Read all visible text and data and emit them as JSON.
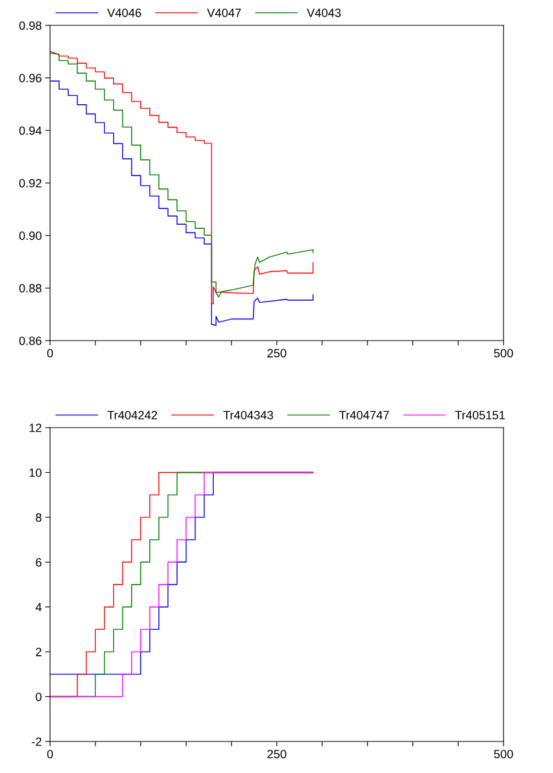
{
  "chart_data": [
    {
      "type": "line",
      "legend": "top left",
      "grid": false,
      "xlim": [
        0,
        500
      ],
      "ylim": [
        0.86,
        0.98
      ],
      "xticks": [
        0,
        {
          "value": 50,
          "label": null
        },
        {
          "value": 100,
          "label": null
        },
        {
          "value": 150,
          "label": null
        },
        {
          "value": 200,
          "label": null
        },
        250,
        {
          "value": 300,
          "label": null
        },
        {
          "value": 350,
          "label": null
        },
        {
          "value": 400,
          "label": null
        },
        {
          "value": 450,
          "label": null
        },
        500
      ],
      "yticks": [
        0.86,
        0.88,
        {
          "value": 0.9,
          "label": "0.90"
        },
        0.92,
        0.94,
        0.96,
        0.98
      ],
      "series": [
        {
          "name": "V4046",
          "color": "#0000ff",
          "x": [
            0,
            10,
            10,
            20,
            20,
            30,
            30,
            40,
            40,
            50,
            50,
            60,
            60,
            70,
            70,
            80,
            80,
            90,
            90,
            100,
            100,
            110,
            110,
            120,
            120,
            130,
            130,
            140,
            140,
            150,
            150,
            160,
            160,
            170,
            170,
            178,
            178,
            183,
            183,
            186,
            200,
            224,
            225,
            229,
            231,
            261,
            262,
            290,
            290
          ],
          "values": [
            0.9588,
            0.9588,
            0.9557,
            0.9557,
            0.9533,
            0.9533,
            0.9498,
            0.9498,
            0.9463,
            0.9463,
            0.943,
            0.943,
            0.939,
            0.939,
            0.935,
            0.935,
            0.9292,
            0.9292,
            0.9228,
            0.9228,
            0.919,
            0.919,
            0.915,
            0.915,
            0.9103,
            0.9103,
            0.9074,
            0.9074,
            0.9043,
            0.9043,
            0.9011,
            0.9011,
            0.8991,
            0.8991,
            0.8968,
            0.8968,
            0.8662,
            0.8658,
            0.8692,
            0.867,
            0.8682,
            0.8682,
            0.8749,
            0.8762,
            0.8745,
            0.8757,
            0.8754,
            0.8754,
            0.8775
          ]
        },
        {
          "name": "V4047",
          "color": "#ff0000",
          "x": [
            0,
            10,
            10,
            20,
            20,
            30,
            30,
            40,
            40,
            50,
            50,
            60,
            60,
            70,
            70,
            80,
            80,
            90,
            90,
            100,
            100,
            110,
            110,
            120,
            120,
            130,
            130,
            140,
            140,
            150,
            150,
            160,
            160,
            170,
            170,
            178,
            178,
            180,
            180,
            183,
            186,
            200,
            224,
            225,
            229,
            231,
            242,
            261,
            262,
            290,
            290
          ],
          "values": [
            0.9701,
            0.9688,
            0.9683,
            0.9683,
            0.9675,
            0.9675,
            0.9656,
            0.9656,
            0.9638,
            0.9638,
            0.9623,
            0.9623,
            0.9599,
            0.9599,
            0.9577,
            0.9577,
            0.9544,
            0.9544,
            0.951,
            0.951,
            0.9484,
            0.9484,
            0.9457,
            0.9457,
            0.9431,
            0.9431,
            0.9412,
            0.9412,
            0.9392,
            0.9392,
            0.9375,
            0.9375,
            0.9362,
            0.9362,
            0.9351,
            0.9351,
            0.874,
            0.874,
            0.8805,
            0.8783,
            0.8785,
            0.8782,
            0.8779,
            0.8866,
            0.8881,
            0.8853,
            0.8862,
            0.8866,
            0.8857,
            0.8857,
            0.8897
          ]
        },
        {
          "name": "V4043",
          "color": "#008000",
          "x": [
            0,
            10,
            10,
            20,
            20,
            30,
            30,
            40,
            40,
            50,
            50,
            60,
            60,
            70,
            70,
            80,
            80,
            90,
            90,
            100,
            100,
            110,
            110,
            120,
            120,
            130,
            130,
            140,
            140,
            150,
            150,
            160,
            160,
            170,
            170,
            178,
            178,
            183,
            183,
            186,
            189,
            202,
            224,
            226,
            229,
            231,
            242,
            261,
            262,
            290,
            290
          ],
          "values": [
            0.9694,
            0.969,
            0.9666,
            0.9666,
            0.9653,
            0.9653,
            0.9618,
            0.9618,
            0.9588,
            0.9588,
            0.9557,
            0.9557,
            0.9516,
            0.9516,
            0.9477,
            0.9477,
            0.9413,
            0.9413,
            0.9344,
            0.9344,
            0.9288,
            0.9288,
            0.9231,
            0.9231,
            0.9177,
            0.9177,
            0.9136,
            0.9136,
            0.9094,
            0.9094,
            0.9053,
            0.9053,
            0.9027,
            0.9027,
            0.9001,
            0.9001,
            0.8823,
            0.8823,
            0.8783,
            0.8766,
            0.8786,
            0.8794,
            0.8811,
            0.889,
            0.8918,
            0.8898,
            0.8918,
            0.8937,
            0.8929,
            0.8946,
            0.8935
          ]
        }
      ]
    },
    {
      "type": "step",
      "legend": "top left",
      "grid": false,
      "xlim": [
        0,
        500
      ],
      "ylim": [
        -2,
        12
      ],
      "xticks": [
        0,
        {
          "value": 50,
          "label": null
        },
        {
          "value": 100,
          "label": null
        },
        {
          "value": 150,
          "label": null
        },
        {
          "value": 200,
          "label": null
        },
        250,
        {
          "value": 300,
          "label": null
        },
        {
          "value": 350,
          "label": null
        },
        {
          "value": 400,
          "label": null
        },
        {
          "value": 450,
          "label": null
        },
        500
      ],
      "yticks": [
        -2,
        0,
        2,
        4,
        6,
        8,
        10,
        12
      ],
      "series": [
        {
          "name": "Tr404242",
          "color": "#0000ff",
          "x": [
            0,
            100,
            110,
            120,
            130,
            140,
            150,
            160,
            170,
            180,
            290
          ],
          "values": [
            1,
            2,
            3,
            4,
            5,
            6,
            7,
            8,
            9,
            10,
            10
          ]
        },
        {
          "name": "Tr404343",
          "color": "#ff0000",
          "x": [
            0,
            30,
            40,
            50,
            60,
            70,
            80,
            90,
            100,
            110,
            120,
            290
          ],
          "values": [
            0,
            1,
            2,
            3,
            4,
            5,
            6,
            7,
            8,
            9,
            10,
            10
          ]
        },
        {
          "name": "Tr404747",
          "color": "#008000",
          "x": [
            0,
            50,
            60,
            70,
            80,
            90,
            100,
            110,
            120,
            130,
            140,
            290
          ],
          "values": [
            0,
            1,
            2,
            3,
            4,
            5,
            6,
            7,
            8,
            9,
            10,
            10
          ]
        },
        {
          "name": "Tr405151",
          "color": "#ff00ff",
          "x": [
            0,
            80,
            90,
            100,
            110,
            120,
            130,
            140,
            150,
            160,
            170,
            290
          ],
          "values": [
            0,
            1,
            2,
            3,
            4,
            5,
            6,
            7,
            8,
            9,
            10,
            10
          ]
        }
      ]
    }
  ]
}
